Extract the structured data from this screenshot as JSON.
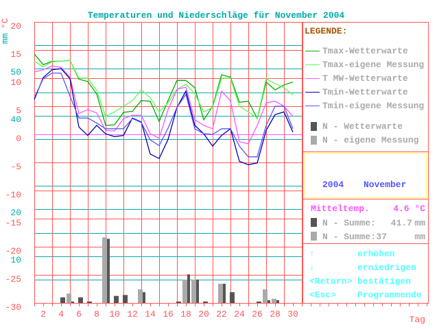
{
  "title": "Temperaturen und Niederschläge für November 2004",
  "axis": {
    "unit_temp": "°C",
    "unit_mm": "mm",
    "xlabel": "Tag",
    "temp_ticks": [
      "20",
      "15",
      "10",
      "5",
      "0",
      "-5",
      "-10",
      "-15",
      "-20",
      "-25",
      "-30"
    ],
    "mm_ticks": [
      "50",
      "40",
      "20",
      "10"
    ],
    "day_ticks": [
      "2",
      "4",
      "6",
      "8",
      "10",
      "12",
      "14",
      "16",
      "18",
      "20",
      "22",
      "24",
      "26",
      "28",
      "30"
    ]
  },
  "legend": {
    "title": "LEGENDE:",
    "items": [
      {
        "label": "Tmax-Wetterwarte",
        "color": "#00aa00"
      },
      {
        "label": "Tmax-eigene Messung",
        "color": "#55ff55"
      },
      {
        "label": "T MW-Wetterwarte",
        "color": "#ff55ff"
      },
      {
        "label": "Tmin-Wetterwarte",
        "color": "#0000aa"
      },
      {
        "label": "Tmin-eigene Messung",
        "color": "#5555ff"
      },
      {
        "label": "N - Wetterwarte",
        "color": "#555555"
      },
      {
        "label": "N - eigene Messung",
        "color": "#aaaaaa"
      }
    ]
  },
  "period": {
    "year": "2004",
    "month": "November"
  },
  "stats": {
    "mean_label": "Mitteltemp.",
    "mean_value": "4.6 °C",
    "sum_label": "N - Summe:",
    "sum_ww_value": "41.7",
    "sum_own_value": "37",
    "unit": "mm"
  },
  "keys": [
    {
      "key": "↑",
      "action": "erhöhen"
    },
    {
      "key": "↓",
      "action": "erniedrigen"
    },
    {
      "key": "<Return>",
      "action": "bestätigen"
    },
    {
      "key": "<Esc>",
      "action": "Programmende"
    }
  ],
  "chart_data": {
    "type": "line+bar",
    "title": "Temperaturen und Niederschläge für November 2004",
    "xlabel": "Tag",
    "ylabel_left": "°C",
    "ylabel_right": "mm",
    "xlim": [
      1,
      30
    ],
    "ylim_temp": [
      -30,
      20
    ],
    "ylim_mm": [
      0,
      60
    ],
    "reference_line_temp": 0,
    "days": [
      1,
      2,
      3,
      4,
      5,
      6,
      7,
      8,
      9,
      10,
      11,
      12,
      13,
      14,
      15,
      16,
      17,
      18,
      19,
      20,
      21,
      22,
      23,
      24,
      25,
      26,
      27,
      28,
      29,
      30
    ],
    "temperature_series": [
      {
        "name": "Tmax-Wetterwarte",
        "color": "#00aa00",
        "values": [
          14.3,
          12.4,
          13.0,
          13.0,
          13.2,
          9.8,
          9.4,
          7.2,
          1.6,
          1.7,
          3.9,
          4.1,
          6.0,
          5.9,
          2.3,
          6.0,
          9.6,
          9.6,
          8.3,
          2.6,
          5.0,
          10.6,
          10.2,
          5.7,
          5.9,
          2.8,
          9.3,
          7.9,
          8.8,
          9.3
        ]
      },
      {
        "name": "Tmax-eigene Messung",
        "color": "#55ff55",
        "values": [
          13.0,
          12.0,
          12.9,
          13.0,
          13.2,
          10.0,
          10.0,
          7.8,
          3.2,
          4.0,
          5.0,
          6.0,
          7.9,
          6.5,
          4.0,
          5.6,
          8.0,
          8.9,
          7.2,
          4.0,
          4.8,
          10.0,
          10.0,
          5.0,
          4.0,
          2.9,
          9.9,
          9.0,
          8.3,
          7.0
        ]
      },
      {
        "name": "T MW-Wetterwarte",
        "color": "#ff55ff",
        "values": [
          11.1,
          11.5,
          12.2,
          11.9,
          10.2,
          3.7,
          4.4,
          3.8,
          0.7,
          0.6,
          2.8,
          3.4,
          3.4,
          0.1,
          -0.7,
          4.4,
          8.0,
          8.4,
          2.6,
          1.6,
          1.0,
          7.7,
          5.9,
          -1.3,
          -1.7,
          1.6,
          5.6,
          5.9,
          5.0,
          3.2
        ]
      },
      {
        "name": "Tmin-Wetterwarte",
        "color": "#0000aa",
        "values": [
          6.2,
          10.1,
          11.5,
          11.7,
          9.9,
          1.3,
          -0.2,
          1.6,
          0.1,
          -0.4,
          -0.2,
          2.9,
          2.2,
          -3.5,
          -4.3,
          -0.9,
          4.8,
          7.7,
          1.6,
          0.1,
          -2.1,
          -0.2,
          1.0,
          -4.8,
          -5.4,
          -5.1,
          0.7,
          3.5,
          4.0,
          0.4
        ]
      },
      {
        "name": "Tmin-eigene Messung",
        "color": "#5555ff",
        "values": [
          6.5,
          9.9,
          10.9,
          10.9,
          6.8,
          2.9,
          2.9,
          2.0,
          1.0,
          1.0,
          1.0,
          2.8,
          2.1,
          -1.0,
          -2.0,
          1.1,
          4.8,
          7.1,
          1.0,
          0.1,
          0.0,
          1.0,
          1.0,
          -2.1,
          -4.0,
          -4.0,
          1.6,
          5.0,
          5.0,
          1.0
        ]
      }
    ],
    "precipitation_series": [
      {
        "name": "N - eigene Messung",
        "color": "#aaaaaa",
        "values": [
          0,
          0,
          0,
          0,
          2.0,
          0,
          0,
          0,
          14.0,
          0,
          0,
          0,
          2.9,
          0,
          0,
          0,
          0,
          5.0,
          5.0,
          0,
          0,
          4.1,
          0,
          0,
          0,
          0,
          2.9,
          0.9,
          0,
          0
        ]
      },
      {
        "name": "N - Wetterwarte",
        "color": "#555555",
        "values": [
          0,
          0,
          0,
          1.2,
          0.3,
          1.2,
          0.3,
          0,
          13.7,
          1.5,
          1.7,
          0,
          2.3,
          0,
          0,
          0,
          0.3,
          6.1,
          5.0,
          0.3,
          0,
          4.1,
          2.3,
          0,
          0,
          0.3,
          0.6,
          0.6,
          0,
          0
        ]
      }
    ]
  }
}
